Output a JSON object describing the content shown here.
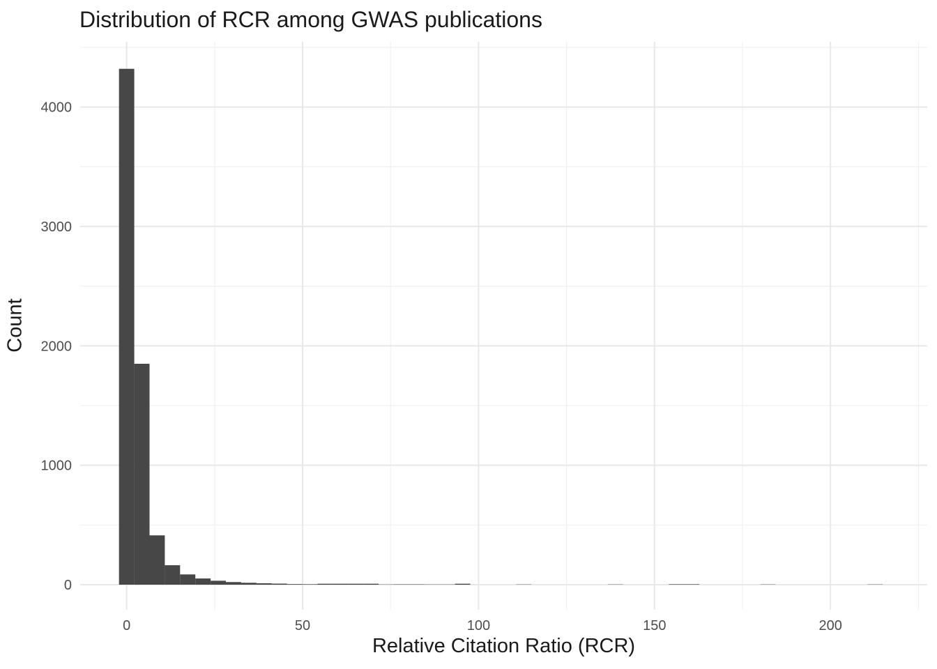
{
  "chart": {
    "title": "Distribution of RCR among GWAS publications",
    "xlabel": "Relative Citation Ratio (RCR)",
    "ylabel": "Count"
  },
  "chart_data": {
    "type": "bar",
    "subtype": "histogram",
    "title": "Distribution of RCR among GWAS publications",
    "xlabel": "Relative Citation Ratio (RCR)",
    "ylabel": "Count",
    "bin_start": -2.17,
    "bin_width": 4.34,
    "counts": [
      4320,
      1850,
      413,
      163,
      86,
      52,
      33,
      22,
      16,
      12,
      9,
      5,
      4,
      8,
      8,
      8,
      8,
      2,
      3,
      3,
      2,
      2,
      8,
      0,
      0,
      0,
      2,
      0,
      0,
      0,
      0,
      0,
      2,
      0,
      0,
      0,
      4,
      4,
      0,
      0,
      0,
      0,
      2,
      0,
      0,
      0,
      0,
      0,
      0,
      2
    ],
    "x_ticks": [
      0,
      50,
      100,
      150,
      200
    ],
    "x_minor_ticks": [
      25,
      75,
      125,
      175,
      225
    ],
    "y_ticks": [
      0,
      1000,
      2000,
      3000,
      4000
    ],
    "y_minor_ticks": [
      500,
      1500,
      2500,
      3500,
      4500
    ],
    "xlim": [
      -13.2,
      227.5
    ],
    "ylim": [
      -210,
      4546
    ],
    "grid": true,
    "legend": false
  },
  "colors": {
    "bar_fill": "#474747",
    "grid_major": "#E8E8E8",
    "grid_minor": "#F0F0F0",
    "axis_text": "#4D4D4D",
    "title_text": "#1A1A1A",
    "background": "#FFFFFF"
  }
}
